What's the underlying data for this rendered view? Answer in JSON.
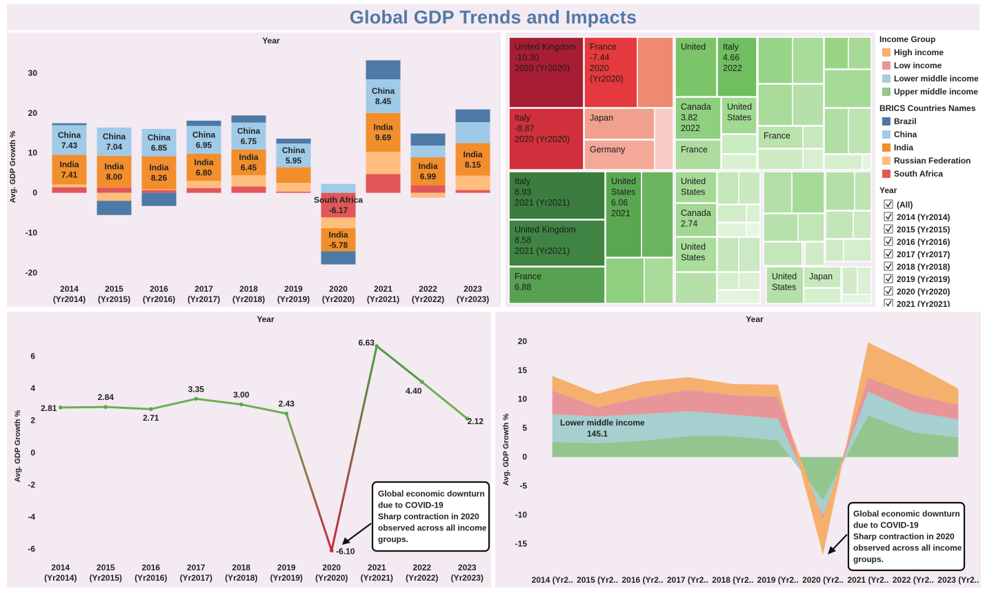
{
  "title": "Global GDP Trends and Impacts",
  "colors": {
    "panel_bg": "#f3eaf2",
    "title": "#4f7aa7",
    "Brazil": "#4e79a7",
    "China": "#a0cbe8",
    "India": "#f28e2b",
    "Russian Federation": "#ffbe7d",
    "South Africa": "#e15759",
    "High income": "#f5b06d",
    "Low income": "#e8959a",
    "Lower middle income": "#a6cfd0",
    "Upper middle income": "#93c68f",
    "line_up": "#6ab04c",
    "line_down": "#c4283c"
  },
  "legend": {
    "income_title": "Income Group",
    "income_items": [
      "High income",
      "Low income",
      "Lower middle income",
      "Upper middle income"
    ],
    "brics_title": "BRICS Countries Names",
    "brics_items": [
      "Brazil",
      "China",
      "India",
      "Russian Federation",
      "South Africa"
    ],
    "year_title": "Year",
    "year_items": [
      "(All)",
      "2014 (Yr2014)",
      "2015 (Yr2015)",
      "2016 (Yr2016)",
      "2017 (Yr2017)",
      "2018 (Yr2018)",
      "2019 (Yr2019)",
      "2020 (Yr2020)",
      "2021 (Yr2021)"
    ]
  },
  "chart_data": [
    {
      "id": "brics-bar",
      "type": "bar",
      "stacked": true,
      "title": "Year",
      "ylabel": "Avg. GDP Growth %",
      "ylim": [
        -22,
        35
      ],
      "yticks": [
        30,
        20,
        10,
        0,
        -10,
        -20
      ],
      "categories": [
        "2014\n(Yr2014)",
        "2015\n(Yr2015)",
        "2016\n(Yr2016)",
        "2017\n(Yr2017)",
        "2018\n(Yr2018)",
        "2019\n(Yr2019)",
        "2020\n(Yr2020)",
        "2021\n(Yr2021)",
        "2022\n(Yr2022)",
        "2023\n(Yr2023)"
      ],
      "series": [
        {
          "name": "South Africa",
          "values": [
            1.4,
            1.3,
            0.7,
            1.2,
            1.6,
            0.3,
            -6.17,
            4.7,
            1.9,
            0.7
          ]
        },
        {
          "name": "Russian Federation",
          "values": [
            0.7,
            -2.0,
            0.2,
            1.8,
            2.8,
            2.2,
            -2.7,
            5.6,
            -1.2,
            3.6
          ]
        },
        {
          "name": "India",
          "values": [
            7.41,
            8.0,
            8.26,
            6.8,
            6.45,
            3.9,
            -5.78,
            9.69,
            6.99,
            8.15
          ]
        },
        {
          "name": "China",
          "values": [
            7.43,
            7.04,
            6.85,
            6.95,
            6.75,
            5.95,
            2.24,
            8.45,
            2.95,
            5.25
          ]
        },
        {
          "name": "Brazil",
          "values": [
            0.5,
            -3.55,
            -3.28,
            1.32,
            1.78,
            1.22,
            -3.28,
            4.76,
            3.02,
            3.2
          ]
        }
      ],
      "data_labels": [
        {
          "category": 0,
          "series": "China",
          "text": "China\n7.43"
        },
        {
          "category": 0,
          "series": "India",
          "text": "India\n7.41"
        },
        {
          "category": 1,
          "series": "China",
          "text": "China\n7.04"
        },
        {
          "category": 1,
          "series": "India",
          "text": "India\n8.00"
        },
        {
          "category": 2,
          "series": "China",
          "text": "China\n6.85"
        },
        {
          "category": 2,
          "series": "India",
          "text": "India\n8.26"
        },
        {
          "category": 3,
          "series": "China",
          "text": "China\n6.95"
        },
        {
          "category": 3,
          "series": "India",
          "text": "India\n6.80"
        },
        {
          "category": 4,
          "series": "China",
          "text": "China\n6.75"
        },
        {
          "category": 4,
          "series": "India",
          "text": "India\n6.45"
        },
        {
          "category": 5,
          "series": "China",
          "text": "China\n5.95"
        },
        {
          "category": 6,
          "series": "South Africa",
          "text": "South Africa\n-6.17"
        },
        {
          "category": 6,
          "series": "India",
          "text": "India\n-5.78"
        },
        {
          "category": 7,
          "series": "China",
          "text": "China\n8.45"
        },
        {
          "category": 7,
          "series": "India",
          "text": "India\n9.69"
        },
        {
          "category": 8,
          "series": "India",
          "text": "India\n6.99"
        },
        {
          "category": 9,
          "series": "India",
          "text": "India\n8.15"
        }
      ]
    },
    {
      "id": "treemap",
      "type": "treemap",
      "groups": [
        "Decline",
        "Growth"
      ],
      "labels": [
        "United Kingdom\n-10.30\n2020 (Yr2020)",
        "France\n-7.44\n2020\n(Yr2020)",
        "Italy\n-8.87\n2020 (Yr2020)",
        "Japan",
        "Germany",
        "United",
        "Italy\n4.66\n2022",
        "Canada\n3.82\n2022",
        "United\nStates",
        "France",
        "France",
        "Italy\n8.93\n2021 (Yr2021)",
        "United\nStates\n6.06\n2021",
        "United Kingdom\n8.58\n2021 (Yr2021)",
        "France\n6.88",
        "United\nStates",
        "Canada\n2.74",
        "United\nStates",
        "United\nStates",
        "Japan"
      ]
    },
    {
      "id": "world-line",
      "type": "line",
      "title": "Year",
      "ylabel": "Avg. GDP Growth %",
      "ylim": [
        -6.6,
        7.4
      ],
      "yticks": [
        6,
        4,
        2,
        0,
        -2,
        -4,
        -6
      ],
      "categories": [
        "2014\n(Yr2014)",
        "2015\n(Yr2015)",
        "2016\n(Yr2016)",
        "2017\n(Yr2017)",
        "2018\n(Yr2018)",
        "2019\n(Yr2019)",
        "2020\n(Yr2020)",
        "2021\n(Yr2021)",
        "2022\n(Yr2022)",
        "2023\n(Yr2023)"
      ],
      "values": [
        2.81,
        2.84,
        2.71,
        3.35,
        3.0,
        2.43,
        -6.1,
        6.63,
        4.4,
        2.12
      ],
      "value_labels": [
        "2.81",
        "2.84",
        "2.71",
        "3.35",
        "3.00",
        "2.43",
        "-6.10",
        "6.63",
        "4.40",
        "2.12"
      ],
      "annotation": "Global economic downturn\ndue to COVID-19\nSharp contraction in 2020\nobserved across all income\ngroups."
    },
    {
      "id": "income-area",
      "type": "area",
      "stacked": true,
      "title": "Year",
      "ylabel": "Avg. GDP Growth %",
      "ylim": [
        -18.5,
        22
      ],
      "yticks": [
        20,
        15,
        10,
        5,
        0,
        -5,
        -10,
        -15
      ],
      "categories": [
        "2014 (Yr2..",
        "2015 (Yr2..",
        "2016 (Yr2..",
        "2017 (Yr2..",
        "2018 (Yr2..",
        "2019 (Yr2..",
        "2020 (Yr2..",
        "2021 (Yr2..",
        "2022 (Yr2..",
        "2023 (Yr2.."
      ],
      "series": [
        {
          "name": "Upper middle income",
          "values": [
            2.6,
            2.4,
            2.8,
            3.6,
            3.6,
            2.9,
            -7.5,
            7.2,
            4.3,
            3.4
          ]
        },
        {
          "name": "Lower middle income",
          "values": [
            4.8,
            4.6,
            4.6,
            4.3,
            3.7,
            3.7,
            -2.6,
            4.1,
            3.5,
            3.1
          ]
        },
        {
          "name": "Low income",
          "values": [
            4.1,
            1.6,
            2.9,
            3.7,
            3.4,
            3.8,
            -0.6,
            2.4,
            3.0,
            2.5
          ]
        },
        {
          "name": "High income",
          "values": [
            2.5,
            2.3,
            2.7,
            2.2,
            1.9,
            2.1,
            -6.2,
            6.1,
            5.2,
            2.8
          ]
        }
      ],
      "data_label": {
        "series": "Lower middle income",
        "category": 0,
        "text": "Lower middle income\n145.1"
      },
      "annotation": "Global economic downturn\ndue to COVID-19\nSharp contraction in 2020\nobserved across all income\ngroups."
    }
  ]
}
